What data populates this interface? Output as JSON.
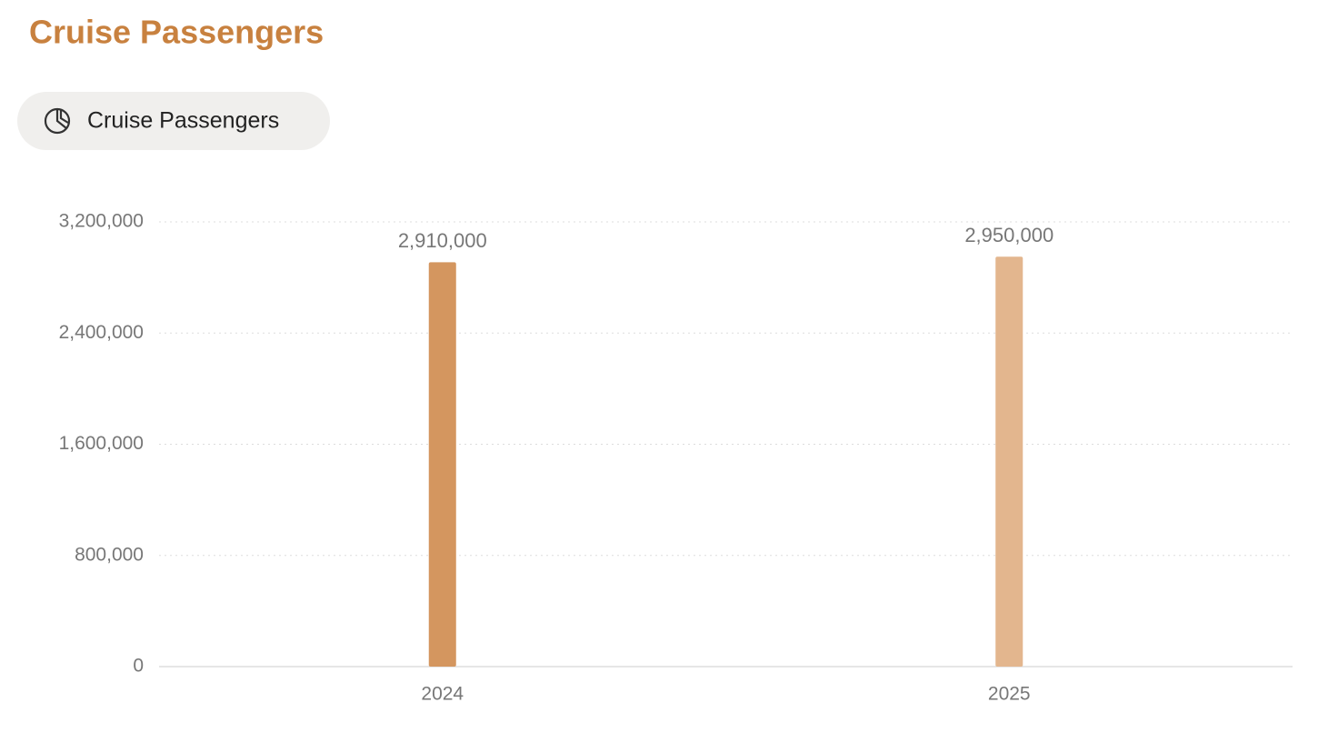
{
  "chart_data": {
    "type": "bar",
    "title": "Cruise Passengers",
    "categories": [
      "2024",
      "2025"
    ],
    "series": [
      {
        "name": "Cruise Passengers",
        "values": [
          2910000,
          2950000
        ],
        "value_labels": [
          "2,910,000",
          "2,950,000"
        ],
        "colors": [
          "#d4965f",
          "#e3b68e"
        ]
      }
    ],
    "ylim": [
      0,
      3200000
    ],
    "yticks": [
      0,
      {
        "value": 800000,
        "label": "800,000"
      },
      {
        "value": 1600000,
        "label": "1,600,000"
      },
      {
        "value": 2400000,
        "label": "2,400,000"
      },
      {
        "value": 3200000,
        "label": "3,200,000"
      }
    ],
    "grid": true
  }
}
